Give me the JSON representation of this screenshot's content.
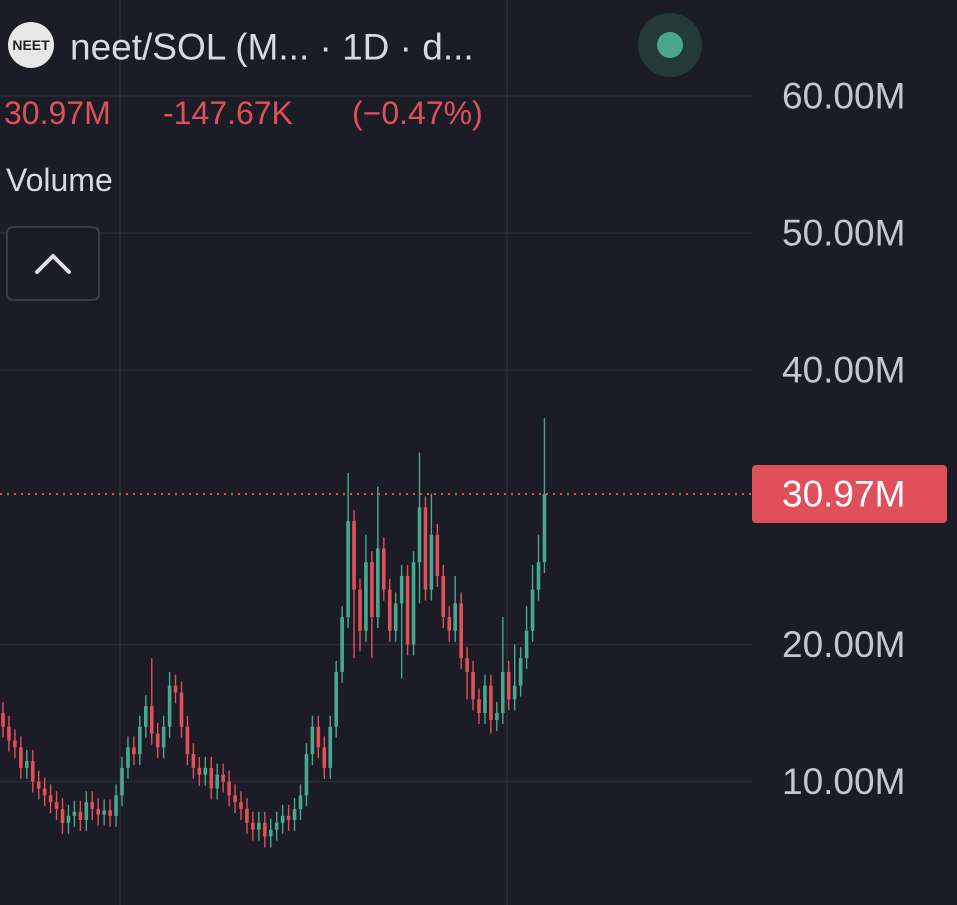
{
  "header": {
    "title": "neet/SOL (M... · 1D · d...",
    "price": "30.97M",
    "change": "-147.67K",
    "change_pct": "(−0.47%)",
    "indicator": "Volume"
  },
  "chart_data": {
    "type": "candlestick",
    "up_color": "#4aa78f",
    "down_color": "#e0505a",
    "ylim": [
      1,
      67
    ],
    "yticks": [
      {
        "value": 10,
        "label": "10.00M"
      },
      {
        "value": 20,
        "label": "20.00M"
      },
      {
        "value": 40,
        "label": "40.00M"
      },
      {
        "value": 50,
        "label": "50.00M"
      },
      {
        "value": 60,
        "label": "60.00M"
      }
    ],
    "last_price": {
      "value": 30.97,
      "label": "30.97M"
    },
    "ohlc": [
      [
        15,
        15.8,
        13.2,
        14
      ],
      [
        14,
        14.8,
        12.2,
        13
      ],
      [
        13,
        13.8,
        11.7,
        12.5
      ],
      [
        12.5,
        13.3,
        10.2,
        11
      ],
      [
        11,
        12.3,
        10.2,
        11.5
      ],
      [
        11.5,
        12.3,
        9.2,
        10
      ],
      [
        10,
        10.8,
        8.7,
        9.5
      ],
      [
        9.5,
        10.3,
        8.2,
        9
      ],
      [
        9,
        9.8,
        7.7,
        8.5
      ],
      [
        8.5,
        9.3,
        7.2,
        8
      ],
      [
        8,
        8.8,
        6.2,
        7
      ],
      [
        7,
        8.3,
        6.2,
        7.5
      ],
      [
        7.5,
        8.6,
        6.7,
        7.8
      ],
      [
        7.8,
        8.6,
        6.4,
        7.2
      ],
      [
        7.2,
        9.3,
        6.4,
        8.5
      ],
      [
        8.5,
        9.3,
        7.2,
        8
      ],
      [
        8,
        8.8,
        6.8,
        7.6
      ],
      [
        7.6,
        8.7,
        6.8,
        7.9
      ],
      [
        7.9,
        8.7,
        6.7,
        7.5
      ],
      [
        7.5,
        9.8,
        6.7,
        9
      ],
      [
        9,
        11.8,
        8.2,
        11
      ],
      [
        11,
        13.3,
        10.2,
        12.5
      ],
      [
        12.5,
        13.3,
        11.2,
        12
      ],
      [
        12,
        14.8,
        11.2,
        14
      ],
      [
        14,
        16.3,
        13.2,
        15.5
      ],
      [
        15.5,
        19,
        12.7,
        13.5
      ],
      [
        13.5,
        14.3,
        11.7,
        12.5
      ],
      [
        12.5,
        14.8,
        11.7,
        14
      ],
      [
        14,
        18,
        13.2,
        17
      ],
      [
        17,
        17.8,
        15.7,
        16.5
      ],
      [
        16.5,
        17.3,
        13.2,
        14
      ],
      [
        14,
        14.8,
        11.2,
        12
      ],
      [
        12,
        12.8,
        10.2,
        11
      ],
      [
        11,
        11.8,
        9.7,
        10.5
      ],
      [
        10.5,
        11.8,
        9.7,
        11
      ],
      [
        11,
        11.8,
        8.7,
        9.5
      ],
      [
        9.5,
        11.3,
        8.7,
        10.5
      ],
      [
        10.5,
        11.3,
        9.2,
        10
      ],
      [
        10,
        10.8,
        8.2,
        9
      ],
      [
        9,
        9.8,
        7.7,
        8.5
      ],
      [
        8.5,
        9.3,
        7.2,
        8
      ],
      [
        8,
        8.8,
        6.2,
        7
      ],
      [
        7,
        7.8,
        5.7,
        6.5
      ],
      [
        6.5,
        7.8,
        5.7,
        7
      ],
      [
        7,
        7.8,
        5.2,
        6
      ],
      [
        6,
        7.3,
        5.2,
        6.5
      ],
      [
        6.5,
        7.8,
        5.7,
        7
      ],
      [
        7,
        8.3,
        6.2,
        7.5
      ],
      [
        7.5,
        8.3,
        6.4,
        7.2
      ],
      [
        7.2,
        8.8,
        6.4,
        8
      ],
      [
        8,
        9.8,
        7.2,
        9
      ],
      [
        9,
        12.8,
        8.2,
        12
      ],
      [
        12,
        14.8,
        11.2,
        14
      ],
      [
        14,
        14.8,
        11.7,
        12.5
      ],
      [
        12.5,
        13.3,
        10.2,
        11
      ],
      [
        11,
        14.8,
        10.2,
        14
      ],
      [
        14,
        18.8,
        13.2,
        18
      ],
      [
        18,
        22.8,
        17.2,
        22
      ],
      [
        22,
        32.5,
        21.2,
        29
      ],
      [
        29,
        29.8,
        19,
        24
      ],
      [
        24,
        24.8,
        19.5,
        21
      ],
      [
        21,
        28,
        20.2,
        26
      ],
      [
        26,
        26.8,
        19,
        22
      ],
      [
        22,
        31.5,
        21.2,
        27
      ],
      [
        27,
        27.8,
        23.2,
        24
      ],
      [
        24,
        24.8,
        20.2,
        21
      ],
      [
        21,
        23.8,
        20.2,
        23
      ],
      [
        23,
        25.8,
        17.5,
        25
      ],
      [
        25,
        25.8,
        19.2,
        20
      ],
      [
        20,
        26.8,
        19.2,
        26
      ],
      [
        26,
        34,
        23,
        30
      ],
      [
        30,
        30.8,
        23.2,
        24
      ],
      [
        24,
        31,
        23.2,
        28
      ],
      [
        28,
        28.8,
        24.2,
        25
      ],
      [
        25,
        25.8,
        21.2,
        22
      ],
      [
        22,
        22.8,
        20.2,
        21
      ],
      [
        21,
        25,
        20.2,
        23
      ],
      [
        23,
        23.8,
        18.2,
        19
      ],
      [
        19,
        19.8,
        16,
        18
      ],
      [
        18,
        18.8,
        15.2,
        16
      ],
      [
        16,
        16.8,
        14.2,
        15
      ],
      [
        15,
        17.8,
        14.2,
        17
      ],
      [
        17,
        17.8,
        13.5,
        14.5
      ],
      [
        14.5,
        15.8,
        13.7,
        15
      ],
      [
        15,
        22,
        14.2,
        18
      ],
      [
        18,
        18.8,
        15.2,
        16
      ],
      [
        16,
        20,
        15.2,
        17
      ],
      [
        17,
        19.8,
        16.2,
        19
      ],
      [
        19,
        22.8,
        18.2,
        21
      ],
      [
        21,
        25.8,
        20.2,
        24
      ],
      [
        24,
        28,
        23.2,
        26
      ],
      [
        26,
        36.5,
        25.2,
        30.97
      ]
    ]
  }
}
